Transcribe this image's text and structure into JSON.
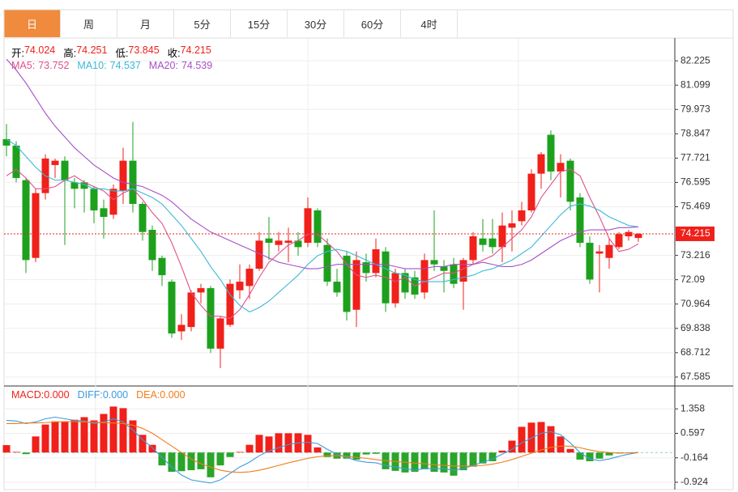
{
  "tabs": {
    "items": [
      "日",
      "周",
      "月",
      "5分",
      "15分",
      "30分",
      "60分",
      "4时"
    ],
    "active": 0
  },
  "chart_data": [
    {
      "type": "candlestick",
      "up_color": "#f0201a",
      "down_color": "#1da11d",
      "grid": true,
      "ylim": [
        67.17,
        83.28
      ],
      "yticks": [
        82.225,
        81.099,
        79.973,
        78.847,
        77.721,
        76.595,
        75.469,
        73.216,
        72.09,
        70.964,
        69.838,
        68.712,
        67.585
      ],
      "ohlc_labels": [
        "开:",
        "高:",
        "低:",
        "收:"
      ],
      "open": [
        78.6,
        78.3,
        76.7,
        73.1,
        76.1,
        77.4,
        77.6,
        76.6,
        76.6,
        76.3,
        75.4,
        75.1,
        76.2,
        77.6,
        75.6,
        74.4,
        73.1,
        72.0,
        69.7,
        69.9,
        71.5,
        71.7,
        68.9,
        70.0,
        71.6,
        71.8,
        72.6,
        74.0,
        73.7,
        73.8,
        73.9,
        73.8,
        75.3,
        73.7,
        72.0,
        73.2,
        70.7,
        72.9,
        72.4,
        73.4,
        71.0,
        72.4,
        72.2,
        71.5,
        73.0,
        72.7,
        72.8,
        72.0,
        73.0,
        74.0,
        74.0,
        73.6,
        74.5,
        74.8,
        75.3,
        77.0,
        78.8,
        77.1,
        77.6,
        75.9,
        73.8,
        73.3,
        73.1,
        73.6,
        74.1,
        74.024
      ],
      "high": [
        79.3,
        78.5,
        76.8,
        76.3,
        77.9,
        77.7,
        77.8,
        76.8,
        76.7,
        76.4,
        75.8,
        76.5,
        78.2,
        79.4,
        75.7,
        74.6,
        73.2,
        72.1,
        70.5,
        71.6,
        71.9,
        71.8,
        70.4,
        72.1,
        72.8,
        72.8,
        74.3,
        75.0,
        74.3,
        74.5,
        74.3,
        75.9,
        75.4,
        74.0,
        72.6,
        73.4,
        73.4,
        73.3,
        74.0,
        73.6,
        72.6,
        72.6,
        72.5,
        73.3,
        75.3,
        73.0,
        73.1,
        73.1,
        74.3,
        74.9,
        74.9,
        75.2,
        75.3,
        75.7,
        77.2,
        78.0,
        79.0,
        77.9,
        77.7,
        76.1,
        74.1,
        73.7,
        74.0,
        74.3,
        74.4,
        74.251
      ],
      "low": [
        77.8,
        76.6,
        72.4,
        72.9,
        75.8,
        76.8,
        73.7,
        75.4,
        75.2,
        74.7,
        74.0,
        74.9,
        75.6,
        75.2,
        73.9,
        72.5,
        71.8,
        69.4,
        69.3,
        69.7,
        71.0,
        68.7,
        68.0,
        69.9,
        71.2,
        71.2,
        72.5,
        73.0,
        73.4,
        72.9,
        73.2,
        73.6,
        73.6,
        71.8,
        71.3,
        70.2,
        69.9,
        72.0,
        72.2,
        70.6,
        70.8,
        71.2,
        71.2,
        71.2,
        72.5,
        71.5,
        71.7,
        70.7,
        72.8,
        73.4,
        73.3,
        72.9,
        73.4,
        74.6,
        75.2,
        76.3,
        76.7,
        75.9,
        75.3,
        73.6,
        71.9,
        71.5,
        72.6,
        73.5,
        73.9,
        73.845
      ],
      "close": [
        78.3,
        76.8,
        73.0,
        76.1,
        77.7,
        77.6,
        76.7,
        76.3,
        76.3,
        75.3,
        75.0,
        76.3,
        77.6,
        75.6,
        74.3,
        73.0,
        72.3,
        69.6,
        70.0,
        71.5,
        71.7,
        68.9,
        70.3,
        71.9,
        72.0,
        72.6,
        73.9,
        73.8,
        73.9,
        73.9,
        73.6,
        75.4,
        73.8,
        72.0,
        71.5,
        70.6,
        73.0,
        72.4,
        73.5,
        71.0,
        72.4,
        71.5,
        71.4,
        73.0,
        72.8,
        72.5,
        71.9,
        73.0,
        74.1,
        73.7,
        73.6,
        74.6,
        74.7,
        75.3,
        77.0,
        77.9,
        77.1,
        77.5,
        75.7,
        73.8,
        72.1,
        73.4,
        73.7,
        74.2,
        74.3,
        74.215
      ],
      "ma": [
        {
          "name": "MA5:",
          "color": "#e0508c",
          "values": [
            76.9,
            77.2,
            76.8,
            76.3,
            76.3,
            76.4,
            76.7,
            76.9,
            76.6,
            76.4,
            76.2,
            75.8,
            76.1,
            76.3,
            75.8,
            75.2,
            74.7,
            73.8,
            72.7,
            71.5,
            70.9,
            70.4,
            70.4,
            70.3,
            70.7,
            71.4,
            72.2,
            72.9,
            73.3,
            73.7,
            73.9,
            74.2,
            74.2,
            73.8,
            73.4,
            72.8,
            72.3,
            72.2,
            72.3,
            72.2,
            72.0,
            72.2,
            71.8,
            72.0,
            72.2,
            72.4,
            72.4,
            72.6,
            72.8,
            73.0,
            73.2,
            73.6,
            74.0,
            74.4,
            75.0,
            75.9,
            76.5,
            77.1,
            77.2,
            76.9,
            75.9,
            75.0,
            74.0,
            73.4,
            73.5,
            73.752
          ]
        },
        {
          "name": "MA10:",
          "color": "#3bb8d8",
          "values": [
            78.6,
            78.3,
            77.8,
            77.3,
            76.9,
            76.7,
            76.7,
            76.6,
            76.5,
            76.3,
            76.3,
            76.2,
            76.2,
            76.3,
            76.1,
            75.9,
            75.6,
            75.1,
            74.6,
            74.0,
            73.4,
            72.7,
            72.1,
            71.4,
            70.9,
            70.6,
            70.8,
            71.1,
            71.5,
            71.9,
            72.3,
            72.8,
            73.2,
            73.4,
            73.5,
            73.4,
            73.2,
            73.0,
            72.8,
            72.6,
            72.4,
            72.3,
            72.1,
            72.0,
            72.0,
            72.0,
            72.1,
            72.2,
            72.3,
            72.5,
            72.6,
            72.8,
            73.0,
            73.3,
            73.6,
            74.1,
            74.6,
            75.1,
            75.5,
            75.6,
            75.5,
            75.3,
            75.0,
            74.8,
            74.6,
            74.537
          ]
        },
        {
          "name": "MA20:",
          "color": "#a64fc9",
          "values": [
            82.3,
            81.8,
            81.2,
            80.5,
            79.8,
            79.2,
            78.7,
            78.2,
            77.8,
            77.4,
            77.1,
            76.8,
            76.6,
            76.5,
            76.4,
            76.2,
            76.0,
            75.7,
            75.3,
            74.9,
            74.6,
            74.3,
            74.1,
            73.9,
            73.7,
            73.5,
            73.3,
            73.1,
            72.9,
            72.8,
            72.7,
            72.6,
            72.6,
            72.7,
            72.8,
            72.8,
            72.8,
            72.8,
            72.8,
            72.8,
            72.7,
            72.6,
            72.6,
            72.6,
            72.7,
            72.7,
            72.8,
            72.8,
            72.8,
            72.9,
            72.8,
            72.7,
            72.7,
            72.8,
            73.0,
            73.3,
            73.6,
            73.9,
            74.1,
            74.3,
            74.4,
            74.4,
            74.4,
            74.5,
            74.5,
            74.539
          ]
        }
      ]
    },
    {
      "type": "macd",
      "up_color": "#f0201a",
      "down_color": "#2aa52a",
      "grid": true,
      "ylim": [
        -1.152,
        2.069
      ],
      "yticks": [
        1.358,
        0.597,
        -0.164,
        -0.924
      ],
      "values": [
        0.23,
        0.02,
        -0.05,
        0.5,
        0.87,
        0.97,
        0.97,
        1.02,
        1.1,
        1.0,
        1.2,
        1.43,
        1.38,
        1.0,
        0.55,
        0.24,
        -0.4,
        -0.6,
        -0.58,
        -0.55,
        -0.52,
        -0.77,
        -0.4,
        -0.14,
        0.02,
        0.24,
        0.55,
        0.5,
        0.6,
        0.6,
        0.6,
        0.55,
        0.16,
        -0.14,
        -0.19,
        -0.19,
        -0.22,
        -0.06,
        -0.04,
        -0.52,
        -0.57,
        -0.62,
        -0.6,
        -0.52,
        -0.6,
        -0.62,
        -0.72,
        -0.55,
        -0.44,
        -0.34,
        -0.27,
        0.06,
        0.37,
        0.8,
        0.93,
        0.95,
        0.82,
        0.5,
        0.11,
        -0.22,
        -0.27,
        -0.19,
        -0.09,
        -0.01,
        0.0,
        0.0
      ],
      "series": [
        {
          "color": "#3b9be0",
          "values": [
            1.0,
            0.98,
            0.9,
            0.95,
            1.05,
            1.1,
            1.05,
            1.0,
            0.98,
            0.9,
            0.95,
            1.05,
            0.95,
            0.7,
            0.4,
            0.15,
            -0.15,
            -0.45,
            -0.7,
            -0.85,
            -0.9,
            -0.95,
            -0.85,
            -0.65,
            -0.45,
            -0.3,
            -0.1,
            0.05,
            0.15,
            0.25,
            0.3,
            0.32,
            0.28,
            0.1,
            -0.05,
            -0.15,
            -0.25,
            -0.3,
            -0.32,
            -0.4,
            -0.45,
            -0.5,
            -0.55,
            -0.5,
            -0.5,
            -0.5,
            -0.55,
            -0.5,
            -0.4,
            -0.3,
            -0.2,
            -0.05,
            0.1,
            0.3,
            0.45,
            0.6,
            0.65,
            0.55,
            0.3,
            0.0,
            -0.2,
            -0.25,
            -0.2,
            -0.12,
            -0.05,
            0.0
          ]
        },
        {
          "color": "#f07d1a",
          "values": [
            0.9,
            0.9,
            0.92,
            0.92,
            0.93,
            0.95,
            0.96,
            0.96,
            0.95,
            0.94,
            0.93,
            0.92,
            0.9,
            0.85,
            0.75,
            0.6,
            0.4,
            0.2,
            0.0,
            -0.2,
            -0.35,
            -0.45,
            -0.55,
            -0.6,
            -0.62,
            -0.6,
            -0.55,
            -0.48,
            -0.4,
            -0.32,
            -0.25,
            -0.18,
            -0.13,
            -0.1,
            -0.1,
            -0.12,
            -0.15,
            -0.18,
            -0.22,
            -0.25,
            -0.28,
            -0.3,
            -0.33,
            -0.35,
            -0.38,
            -0.4,
            -0.42,
            -0.42,
            -0.42,
            -0.4,
            -0.36,
            -0.3,
            -0.22,
            -0.12,
            -0.02,
            0.08,
            0.16,
            0.2,
            0.2,
            0.15,
            0.08,
            0.03,
            0.0,
            -0.02,
            -0.01,
            0.0
          ]
        }
      ],
      "legend": [
        {
          "label": "MACD:",
          "value": 0,
          "value_label": "0.000",
          "color": "#f0201a"
        },
        {
          "label": "DIFF:",
          "value": 0,
          "value_label": "0.000",
          "color": "#3b9be0"
        },
        {
          "label": "DEA:",
          "value": 0,
          "value_label": "0.000",
          "color": "#f07d1a"
        }
      ]
    }
  ]
}
